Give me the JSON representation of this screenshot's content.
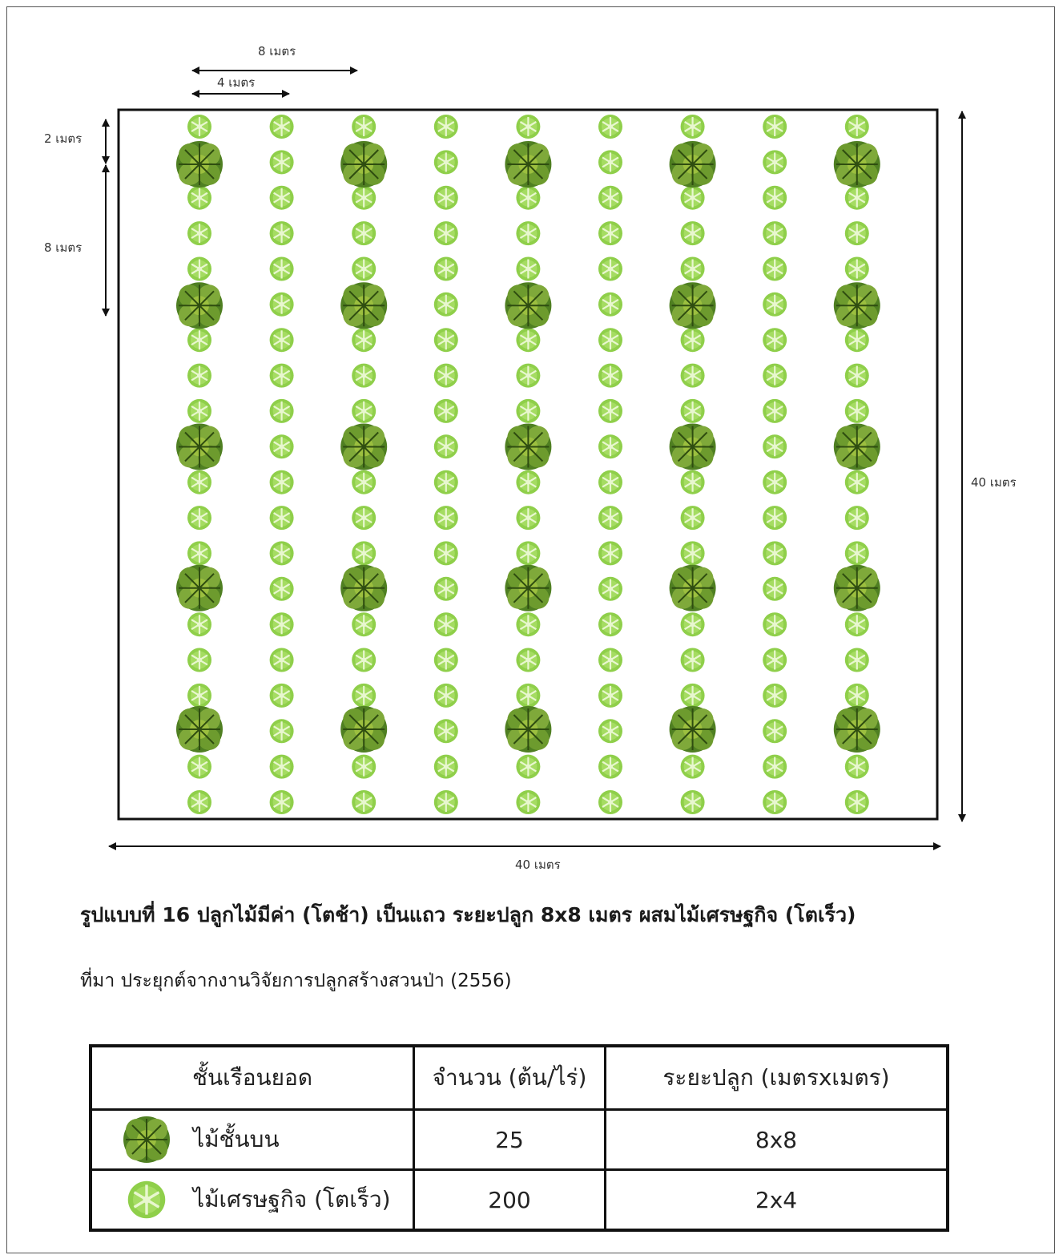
{
  "dimensions": {
    "top_8m": "8 เมตร",
    "top_4m": "4 เมตร",
    "left_2m": "2 เมตร",
    "left_8m": "8 เมตร",
    "right_40m": "40 เมตร",
    "bottom_40m": "40 เมตร"
  },
  "caption": "รูปแบบที่ 16 ปลูกไม้มีค่า (โตช้า) เป็นแถว ระยะปลูก 8x8   เมตร ผสมไม้เศรษฐกิจ (โตเร็ว)",
  "source": "ที่มา ประยุกต์จากงานวิจัยการปลูกสร้างสวนป่า (2556)",
  "legend_table": {
    "headers": [
      "ชั้นเรือนยอด",
      "จำนวน (ต้น/ไร่)",
      "ระยะปลูก (เมตรxเมตร)"
    ],
    "rows": [
      {
        "icon": "large-tree-icon",
        "layer": "ไม้ชั้นบน",
        "count": "25",
        "spacing": "8x8"
      },
      {
        "icon": "small-tree-icon",
        "layer": "ไม้เศรษฐกิจ (โตเร็ว)",
        "count": "200",
        "spacing": "2x4"
      }
    ]
  },
  "plot": {
    "large_tree_columns": 5,
    "large_tree_rows": 5,
    "small_tree_columns": 9,
    "small_tree_rows": 20
  },
  "colors": {
    "small_tree": "#8fcf4a",
    "large_tree": "#5f8f2a",
    "line": "#111111"
  }
}
